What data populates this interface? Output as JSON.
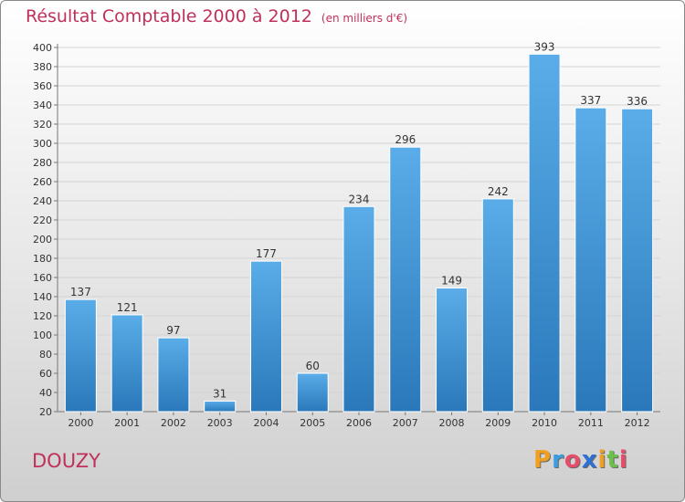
{
  "header": {
    "title": "Résultat Comptable 2000 à 2012",
    "subtitle": "(en milliers d'€)"
  },
  "footer": {
    "city": "DOUZY",
    "logo_letters": [
      "P",
      "r",
      "o",
      "x",
      "i",
      "t",
      "i"
    ],
    "logo_colors": [
      "#f0a020",
      "#3b9de0",
      "#e84c6b",
      "#2e6fd1",
      "#f0a020",
      "#6cc04a",
      "#e84c6b"
    ]
  },
  "colors": {
    "bar_top": "#5aade8",
    "bar_bottom": "#2a78ba",
    "title": "#c0305a",
    "gridline": "#d4d4d4"
  },
  "chart_data": {
    "type": "bar",
    "title": "Résultat Comptable 2000 à 2012",
    "subtitle": "(en milliers d'€)",
    "xlabel": "",
    "ylabel": "",
    "categories": [
      "2000",
      "2001",
      "2002",
      "2003",
      "2004",
      "2005",
      "2006",
      "2007",
      "2008",
      "2009",
      "2010",
      "2011",
      "2012"
    ],
    "values": [
      137,
      121,
      97,
      31,
      177,
      60,
      234,
      296,
      149,
      242,
      393,
      337,
      336
    ],
    "ylim": [
      20,
      400
    ],
    "yticks": [
      20,
      40,
      60,
      80,
      100,
      120,
      140,
      160,
      180,
      200,
      220,
      240,
      260,
      280,
      300,
      320,
      340,
      360,
      380,
      400
    ],
    "grid": true,
    "legend": "none"
  }
}
